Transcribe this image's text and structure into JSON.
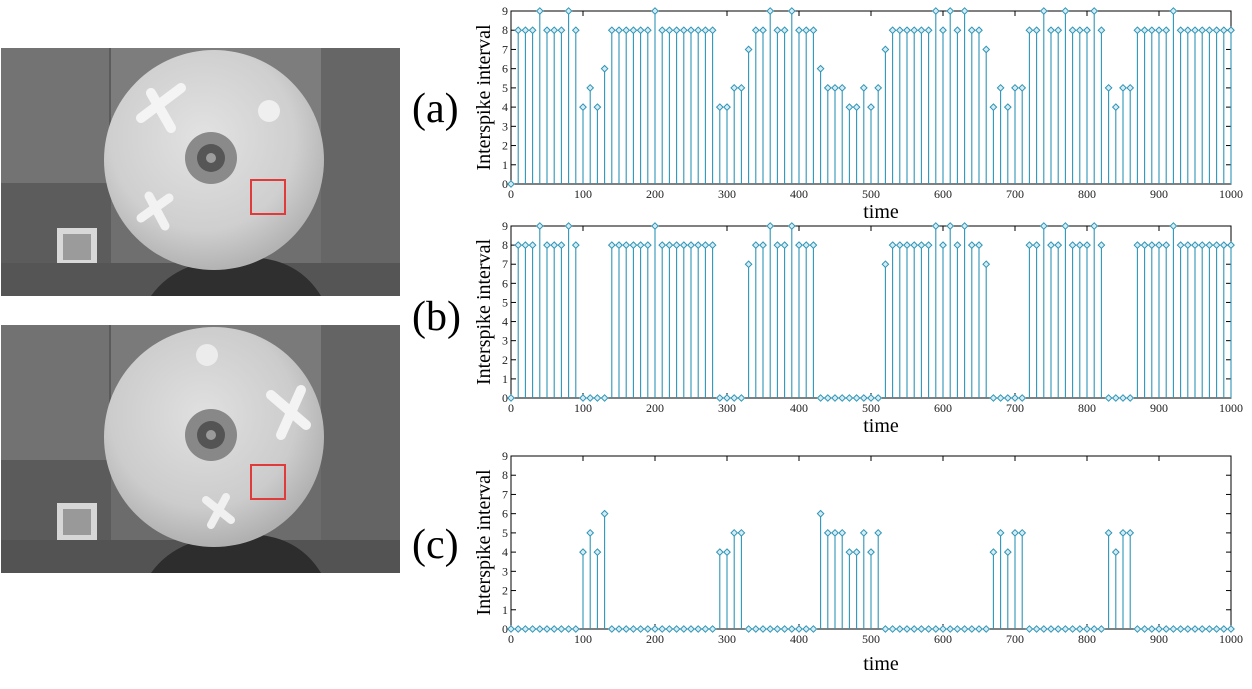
{
  "panels": [
    {
      "letter": "(a)"
    },
    {
      "letter": "(b)"
    },
    {
      "letter": "(c)"
    }
  ],
  "colors": {
    "stem": "#2e95b6",
    "marker_fill": "#d6ecf4",
    "photo_box": "#e03a3a"
  },
  "chart_data": [
    {
      "type": "stem",
      "title": "",
      "xlabel": "time",
      "ylabel": "Interspike interval",
      "xlim": [
        0,
        1000
      ],
      "ylim": [
        0,
        9
      ],
      "xticks": [
        0,
        100,
        200,
        300,
        400,
        500,
        600,
        700,
        800,
        900,
        1000
      ],
      "yticks": [
        0,
        1,
        2,
        3,
        4,
        5,
        6,
        7,
        8,
        9
      ],
      "grid": false,
      "x": [
        0,
        10,
        20,
        30,
        40,
        50,
        60,
        70,
        80,
        90,
        100,
        110,
        120,
        130,
        140,
        150,
        160,
        170,
        180,
        190,
        200,
        210,
        220,
        230,
        240,
        250,
        260,
        270,
        280,
        290,
        300,
        310,
        320,
        330,
        340,
        350,
        360,
        370,
        380,
        390,
        400,
        410,
        420,
        430,
        440,
        450,
        460,
        470,
        480,
        490,
        500,
        510,
        520,
        530,
        540,
        550,
        560,
        570,
        580,
        590,
        600,
        610,
        620,
        630,
        640,
        650,
        660,
        670,
        680,
        690,
        700,
        710,
        720,
        730,
        740,
        750,
        760,
        770,
        780,
        790,
        800,
        810,
        820,
        830,
        840,
        850,
        860,
        870,
        880,
        890,
        900,
        910,
        920,
        930,
        940,
        950,
        960,
        970,
        980,
        990,
        1000
      ],
      "y": [
        0,
        8,
        8,
        8,
        9,
        8,
        8,
        8,
        9,
        8,
        4,
        5,
        4,
        6,
        8,
        8,
        8,
        8,
        8,
        8,
        9,
        8,
        8,
        8,
        8,
        8,
        8,
        8,
        8,
        4,
        4,
        5,
        5,
        7,
        8,
        8,
        9,
        8,
        8,
        9,
        8,
        8,
        8,
        6,
        5,
        5,
        5,
        4,
        4,
        5,
        4,
        5,
        7,
        8,
        8,
        8,
        8,
        8,
        8,
        9,
        8,
        9,
        8,
        9,
        8,
        8,
        7,
        4,
        5,
        4,
        5,
        5,
        8,
        8,
        9,
        8,
        8,
        9,
        8,
        8,
        8,
        9,
        8,
        5,
        4,
        5,
        5,
        8,
        8,
        8,
        8,
        8,
        9,
        8,
        8,
        8,
        8,
        8,
        8,
        8,
        8
      ]
    },
    {
      "type": "stem",
      "title": "",
      "xlabel": "time",
      "ylabel": "Interspike interval",
      "xlim": [
        0,
        1000
      ],
      "ylim": [
        0,
        9
      ],
      "xticks": [
        0,
        100,
        200,
        300,
        400,
        500,
        600,
        700,
        800,
        900,
        1000
      ],
      "yticks": [
        0,
        1,
        2,
        3,
        4,
        5,
        6,
        7,
        8,
        9
      ],
      "grid": false,
      "x": [
        0,
        10,
        20,
        30,
        40,
        50,
        60,
        70,
        80,
        90,
        100,
        110,
        120,
        130,
        140,
        150,
        160,
        170,
        180,
        190,
        200,
        210,
        220,
        230,
        240,
        250,
        260,
        270,
        280,
        290,
        300,
        310,
        320,
        330,
        340,
        350,
        360,
        370,
        380,
        390,
        400,
        410,
        420,
        430,
        440,
        450,
        460,
        470,
        480,
        490,
        500,
        510,
        520,
        530,
        540,
        550,
        560,
        570,
        580,
        590,
        600,
        610,
        620,
        630,
        640,
        650,
        660,
        670,
        680,
        690,
        700,
        710,
        720,
        730,
        740,
        750,
        760,
        770,
        780,
        790,
        800,
        810,
        820,
        830,
        840,
        850,
        860,
        870,
        880,
        890,
        900,
        910,
        920,
        930,
        940,
        950,
        960,
        970,
        980,
        990,
        1000
      ],
      "y": [
        0,
        8,
        8,
        8,
        9,
        8,
        8,
        8,
        9,
        8,
        0,
        0,
        0,
        0,
        8,
        8,
        8,
        8,
        8,
        8,
        9,
        8,
        8,
        8,
        8,
        8,
        8,
        8,
        8,
        0,
        0,
        0,
        0,
        7,
        8,
        8,
        9,
        8,
        8,
        9,
        8,
        8,
        8,
        0,
        0,
        0,
        0,
        0,
        0,
        0,
        0,
        0,
        7,
        8,
        8,
        8,
        8,
        8,
        8,
        9,
        8,
        9,
        8,
        9,
        8,
        8,
        7,
        0,
        0,
        0,
        0,
        0,
        8,
        8,
        9,
        8,
        8,
        9,
        8,
        8,
        8,
        9,
        8,
        0,
        0,
        0,
        0,
        8,
        8,
        8,
        8,
        8,
        9,
        8,
        8,
        8,
        8,
        8,
        8,
        8,
        8
      ]
    },
    {
      "type": "stem",
      "title": "",
      "xlabel": "time",
      "ylabel": "Interspike interval",
      "xlim": [
        0,
        1000
      ],
      "ylim": [
        0,
        9
      ],
      "xticks": [
        0,
        100,
        200,
        300,
        400,
        500,
        600,
        700,
        800,
        900,
        1000
      ],
      "yticks": [
        0,
        1,
        2,
        3,
        4,
        5,
        6,
        7,
        8,
        9
      ],
      "grid": false,
      "x": [
        0,
        10,
        20,
        30,
        40,
        50,
        60,
        70,
        80,
        90,
        100,
        110,
        120,
        130,
        140,
        150,
        160,
        170,
        180,
        190,
        200,
        210,
        220,
        230,
        240,
        250,
        260,
        270,
        280,
        290,
        300,
        310,
        320,
        330,
        340,
        350,
        360,
        370,
        380,
        390,
        400,
        410,
        420,
        430,
        440,
        450,
        460,
        470,
        480,
        490,
        500,
        510,
        520,
        530,
        540,
        550,
        560,
        570,
        580,
        590,
        600,
        610,
        620,
        630,
        640,
        650,
        660,
        670,
        680,
        690,
        700,
        710,
        720,
        730,
        740,
        750,
        760,
        770,
        780,
        790,
        800,
        810,
        820,
        830,
        840,
        850,
        860,
        870,
        880,
        890,
        900,
        910,
        920,
        930,
        940,
        950,
        960,
        970,
        980,
        990,
        1000
      ],
      "y": [
        0,
        0,
        0,
        0,
        0,
        0,
        0,
        0,
        0,
        0,
        4,
        5,
        4,
        6,
        0,
        0,
        0,
        0,
        0,
        0,
        0,
        0,
        0,
        0,
        0,
        0,
        0,
        0,
        0,
        4,
        4,
        5,
        5,
        0,
        0,
        0,
        0,
        0,
        0,
        0,
        0,
        0,
        0,
        6,
        5,
        5,
        5,
        4,
        4,
        5,
        4,
        5,
        0,
        0,
        0,
        0,
        0,
        0,
        0,
        0,
        0,
        0,
        0,
        0,
        0,
        0,
        0,
        4,
        5,
        4,
        5,
        5,
        0,
        0,
        0,
        0,
        0,
        0,
        0,
        0,
        0,
        0,
        0,
        5,
        4,
        5,
        5,
        0,
        0,
        0,
        0,
        0,
        0,
        0,
        0,
        0,
        0,
        0,
        0,
        0,
        0
      ]
    }
  ]
}
